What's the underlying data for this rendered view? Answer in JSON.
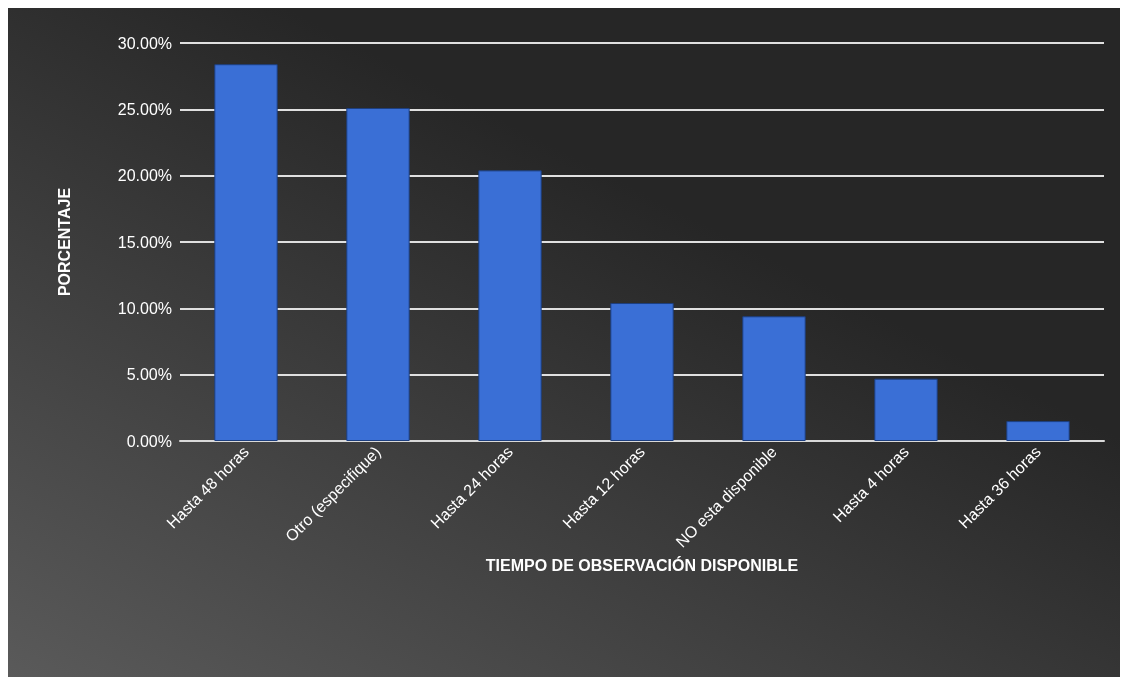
{
  "chart_data": {
    "type": "bar",
    "xlabel": "TIEMPO DE OBSERVACIÓN DISPONIBLE",
    "ylabel": "PORCENTAJE",
    "categories": [
      "Hasta 48 horas",
      "Otro (especifique)",
      "Hasta 24 horas",
      "Hasta 12 horas",
      "NO esta disponible",
      "Hasta 4 horas",
      "Hasta 36 horas"
    ],
    "values": [
      28.4,
      25.1,
      20.4,
      10.4,
      9.4,
      4.7,
      1.5
    ],
    "color": "#3a6fd6",
    "ylim": [
      0,
      30
    ],
    "yticks": [
      {
        "value": 0,
        "label": "0.00%"
      },
      {
        "value": 5,
        "label": "5.00%"
      },
      {
        "value": 10,
        "label": "10.00%"
      },
      {
        "value": 15,
        "label": "15.00%"
      },
      {
        "value": 20,
        "label": "20.00%"
      },
      {
        "value": 25,
        "label": "25.00%"
      },
      {
        "value": 30,
        "label": "30.00%"
      }
    ],
    "grid": "y"
  }
}
